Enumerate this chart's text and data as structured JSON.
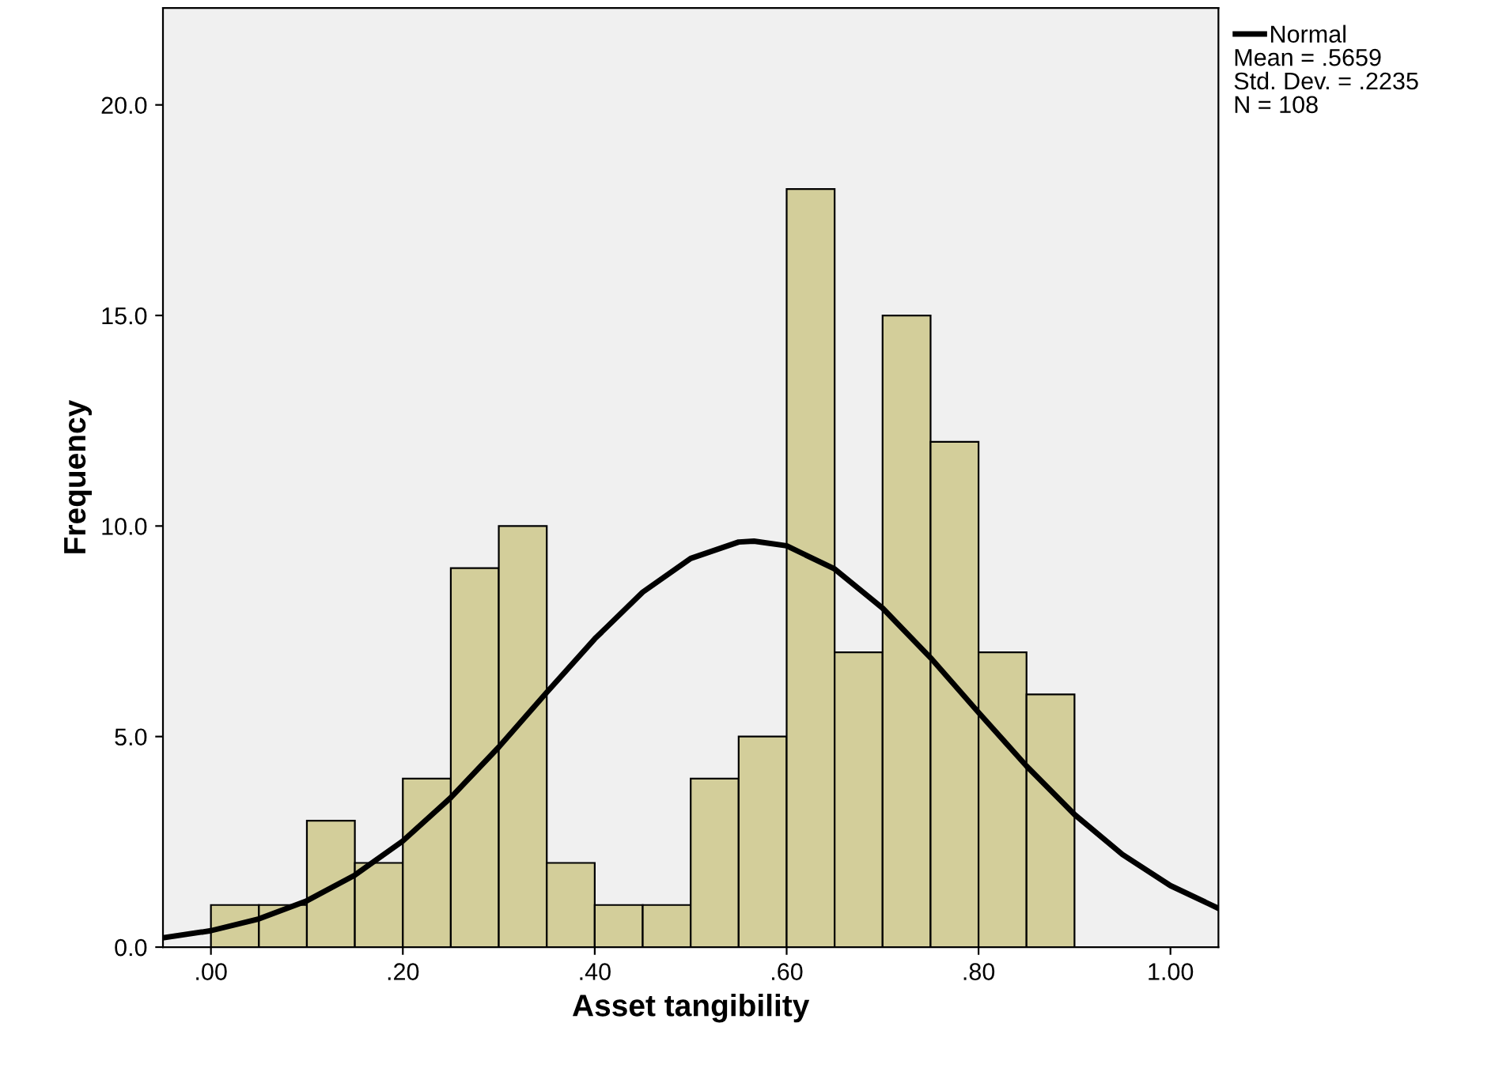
{
  "chart_data": {
    "type": "histogram",
    "xlabel": "Asset tangibility",
    "ylabel": "Frequency",
    "bins": [
      0.0,
      0.05,
      0.1,
      0.15,
      0.2,
      0.25,
      0.3,
      0.35,
      0.4,
      0.45,
      0.5,
      0.55,
      0.6,
      0.65,
      0.7,
      0.75,
      0.8,
      0.85,
      0.9
    ],
    "values": [
      1,
      1,
      3,
      2,
      4,
      9,
      10,
      2,
      1,
      1,
      4,
      5,
      18,
      7,
      15,
      12,
      7,
      6
    ],
    "color": "#d3ce9a",
    "series": [
      {
        "name": "Normal",
        "type": "line",
        "color": "#000000",
        "x": [
          -0.05,
          0.0,
          0.05,
          0.1,
          0.15,
          0.2,
          0.25,
          0.3,
          0.35,
          0.4,
          0.45,
          0.5,
          0.55,
          0.5659,
          0.6,
          0.65,
          0.7,
          0.75,
          0.8,
          0.85,
          0.9,
          0.95,
          1.0,
          1.05
        ],
        "values": [
          0.22,
          0.39,
          0.67,
          1.1,
          1.71,
          2.52,
          3.55,
          4.75,
          6.05,
          7.32,
          8.43,
          9.23,
          9.62,
          9.64,
          9.53,
          8.98,
          8.05,
          6.87,
          5.57,
          4.3,
          3.15,
          2.2,
          1.46,
          0.92
        ]
      }
    ],
    "xlim": [
      -0.05,
      1.05
    ],
    "ylim": [
      0,
      22.3
    ],
    "xticks": [
      {
        "value": 0,
        "label": ".00"
      },
      {
        "value": 0.2,
        "label": ".20"
      },
      {
        "value": 0.4,
        "label": ".40"
      },
      {
        "value": 0.6,
        "label": ".60"
      },
      {
        "value": 0.8,
        "label": ".80"
      },
      {
        "value": 1,
        "label": "1.00"
      }
    ],
    "yticks": [
      {
        "value": 0,
        "label": "0.0"
      },
      {
        "value": 5,
        "label": "5.0"
      },
      {
        "value": 10,
        "label": "10.0"
      },
      {
        "value": 15,
        "label": "15.0"
      },
      {
        "value": 20,
        "label": "20.0"
      }
    ],
    "grid": false,
    "legend": "top right",
    "annotations": [
      "Mean = .5659",
      "Std. Dev. = .2235",
      "N = 108"
    ]
  }
}
